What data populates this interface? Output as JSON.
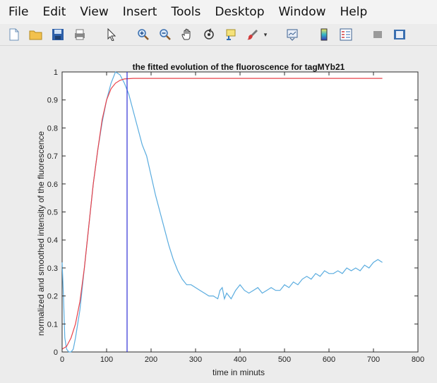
{
  "menubar": {
    "items": [
      "File",
      "Edit",
      "View",
      "Insert",
      "Tools",
      "Desktop",
      "Window",
      "Help"
    ]
  },
  "toolbar": {
    "icons": [
      "new-file-icon",
      "open-folder-icon",
      "save-icon",
      "print-icon",
      "pointer-icon",
      "zoom-in-icon",
      "zoom-out-icon",
      "pan-icon",
      "rotate-3d-icon",
      "data-cursor-icon",
      "brush-icon",
      "link-plot-icon",
      "colorbar-icon",
      "legend-icon",
      "hide-plot-tools-icon",
      "show-plot-tools-icon"
    ]
  },
  "chart_data": {
    "type": "line",
    "title": "the fitted evolution of the fluoroscence for tagMYb21",
    "xlabel": "time in minuts",
    "ylabel": "normalized and smoothed intensity of the fluorescence",
    "xlim": [
      0,
      800
    ],
    "ylim": [
      0,
      1
    ],
    "xticks": [
      0,
      100,
      200,
      300,
      400,
      500,
      600,
      700,
      800
    ],
    "yticks": [
      0,
      0.1,
      0.2,
      0.3,
      0.4,
      0.5,
      0.6,
      0.7,
      0.8,
      0.9,
      1
    ],
    "grid": false,
    "series": [
      {
        "color": "#5aacdf",
        "x": [
          0,
          3,
          6,
          10,
          15,
          20,
          25,
          30,
          40,
          50,
          60,
          70,
          80,
          90,
          100,
          110,
          120,
          130,
          140,
          150,
          160,
          170,
          180,
          190,
          200,
          210,
          220,
          230,
          240,
          250,
          260,
          270,
          280,
          290,
          300,
          310,
          320,
          330,
          340,
          350,
          355,
          360,
          365,
          370,
          380,
          390,
          400,
          410,
          420,
          430,
          440,
          450,
          460,
          470,
          480,
          490,
          500,
          510,
          520,
          530,
          540,
          550,
          560,
          570,
          580,
          590,
          600,
          610,
          620,
          630,
          640,
          650,
          660,
          670,
          680,
          690,
          700,
          710,
          720
        ],
        "y": [
          0.32,
          0.2,
          0.05,
          0.01,
          0.0,
          0.0,
          0.01,
          0.05,
          0.15,
          0.3,
          0.45,
          0.6,
          0.72,
          0.82,
          0.9,
          0.96,
          1.0,
          0.99,
          0.96,
          0.92,
          0.86,
          0.8,
          0.74,
          0.7,
          0.63,
          0.56,
          0.5,
          0.44,
          0.38,
          0.33,
          0.29,
          0.26,
          0.24,
          0.24,
          0.23,
          0.22,
          0.21,
          0.2,
          0.2,
          0.19,
          0.22,
          0.23,
          0.19,
          0.21,
          0.19,
          0.22,
          0.24,
          0.22,
          0.21,
          0.22,
          0.23,
          0.21,
          0.22,
          0.23,
          0.22,
          0.22,
          0.24,
          0.23,
          0.25,
          0.24,
          0.26,
          0.27,
          0.26,
          0.28,
          0.27,
          0.29,
          0.28,
          0.28,
          0.29,
          0.28,
          0.3,
          0.29,
          0.3,
          0.29,
          0.31,
          0.3,
          0.32,
          0.33,
          0.32
        ]
      },
      {
        "color": "#e8424a",
        "x": [
          0,
          10,
          20,
          30,
          40,
          50,
          60,
          70,
          80,
          90,
          100,
          110,
          120,
          130,
          140,
          150,
          160,
          180,
          200,
          250,
          300,
          400,
          500,
          600,
          720
        ],
        "y": [
          0.01,
          0.02,
          0.05,
          0.1,
          0.18,
          0.3,
          0.45,
          0.6,
          0.72,
          0.83,
          0.9,
          0.94,
          0.96,
          0.97,
          0.975,
          0.976,
          0.977,
          0.977,
          0.977,
          0.977,
          0.977,
          0.977,
          0.977,
          0.977,
          0.977
        ]
      },
      {
        "color": "#2f2fd6",
        "x": [
          146,
          146
        ],
        "y": [
          0,
          1
        ]
      }
    ]
  }
}
